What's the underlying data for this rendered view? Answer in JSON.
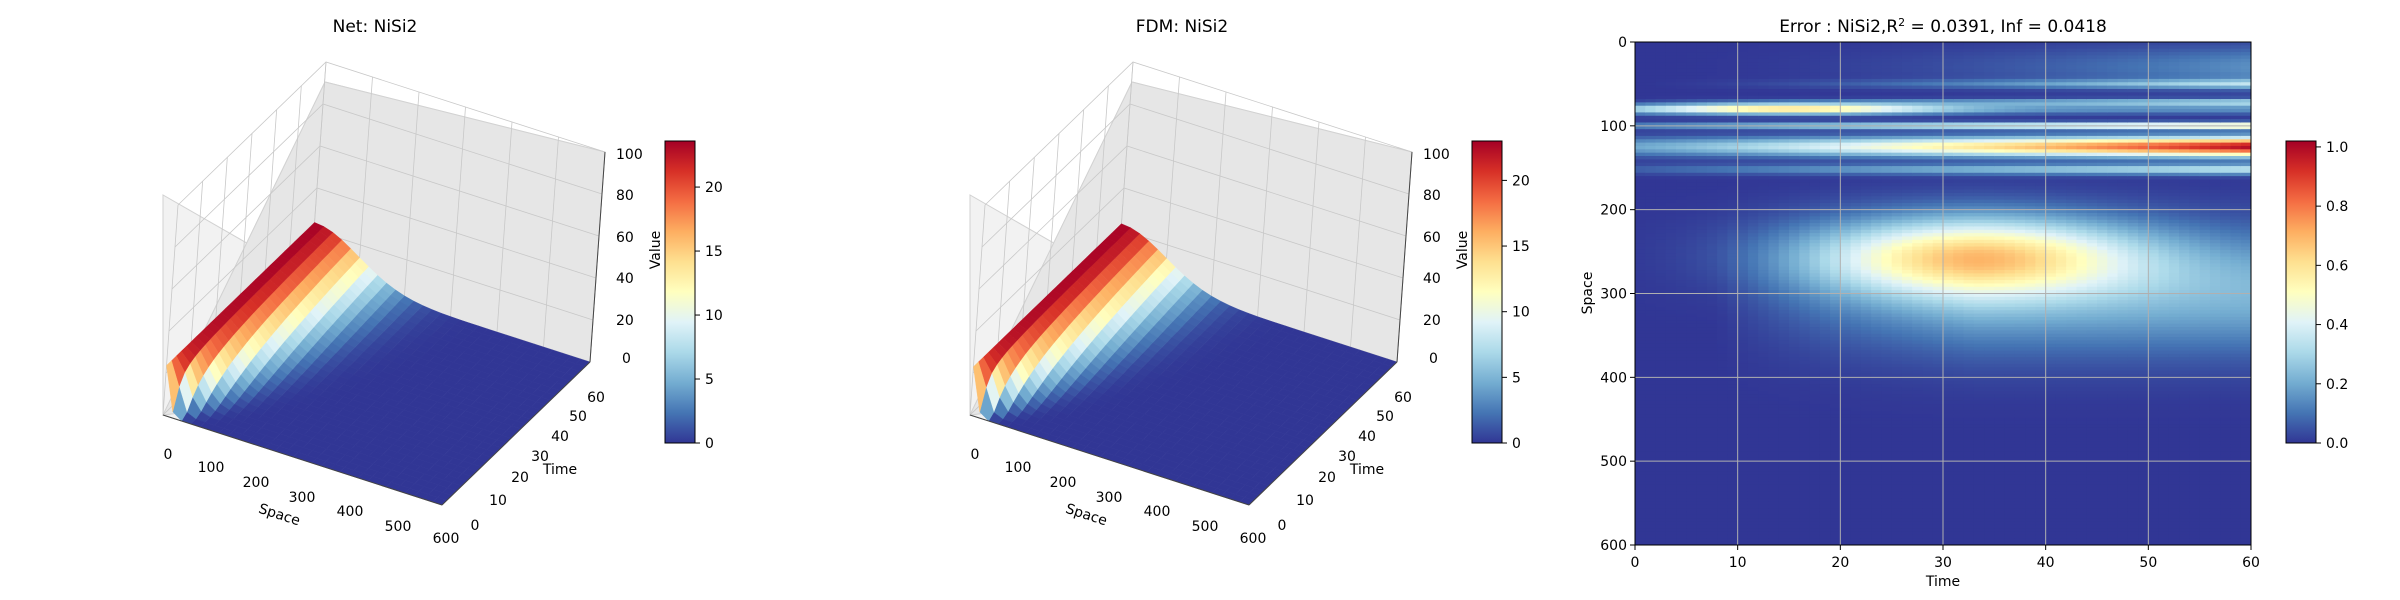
{
  "colors": {
    "cmap": [
      "#313695",
      "#4575b4",
      "#74add1",
      "#abd9e9",
      "#e0f3f8",
      "#ffffbf",
      "#fee090",
      "#fdae61",
      "#f46d43",
      "#d73027",
      "#a50026"
    ],
    "pane": "#f2f2f2",
    "grid": "#c8c8c8"
  },
  "chart_data": [
    {
      "type": "surface3d",
      "title": "Net: NiSi2",
      "xlabel": "Space",
      "ylabel": "Time",
      "zlabel": "Value",
      "xlim": [
        0,
        600
      ],
      "ylim": [
        0,
        60
      ],
      "zlim": [
        0,
        100
      ],
      "x_ticks": [
        "0",
        "100",
        "200",
        "300",
        "400",
        "500",
        "600"
      ],
      "y_ticks": [
        "0",
        "10",
        "20",
        "30",
        "40",
        "50",
        "60"
      ],
      "z_ticks": [
        "0",
        "20",
        "40",
        "60",
        "80",
        "100"
      ],
      "peak_value": 23.6,
      "colorbar": {
        "range": [
          0,
          23.6
        ],
        "ticks": [
          "0",
          "5",
          "10",
          "15",
          "20"
        ]
      }
    },
    {
      "type": "surface3d",
      "title": "FDM: NiSi2",
      "xlabel": "Space",
      "ylabel": "Time",
      "zlabel": "Value",
      "xlim": [
        0,
        600
      ],
      "ylim": [
        0,
        60
      ],
      "zlim": [
        0,
        100
      ],
      "x_ticks": [
        "0",
        "100",
        "200",
        "300",
        "400",
        "500",
        "600"
      ],
      "y_ticks": [
        "0",
        "10",
        "20",
        "30",
        "40",
        "50",
        "60"
      ],
      "z_ticks": [
        "0",
        "20",
        "40",
        "60",
        "80",
        "100"
      ],
      "peak_value": 23.0,
      "colorbar": {
        "range": [
          0,
          23.0
        ],
        "ticks": [
          "0",
          "5",
          "10",
          "15",
          "20"
        ]
      }
    },
    {
      "type": "heatmap",
      "title_prefix": "Error : NiSi2,R",
      "title_sup": "2",
      "title_suffix": " = 0.0391, Inf = 0.0418",
      "xlabel": "Time",
      "ylabel": "Space",
      "xlim": [
        0,
        60
      ],
      "ylim": [
        0,
        600
      ],
      "x_ticks": [
        "0",
        "10",
        "20",
        "30",
        "40",
        "50",
        "60"
      ],
      "y_ticks": [
        "0",
        "100",
        "200",
        "300",
        "400",
        "500",
        "600"
      ],
      "grid": true,
      "colorbar": {
        "range": [
          0,
          1.02
        ],
        "ticks": [
          "0.0",
          "0.2",
          "0.4",
          "0.6",
          "0.8",
          "1.0"
        ]
      },
      "features": [
        {
          "space": 80,
          "peak_time": 15,
          "value": 0.62
        },
        {
          "space": 125,
          "peak_time": 60,
          "value": 1.0
        },
        {
          "space": 255,
          "peak_time": 33,
          "value": 0.55
        }
      ]
    }
  ]
}
